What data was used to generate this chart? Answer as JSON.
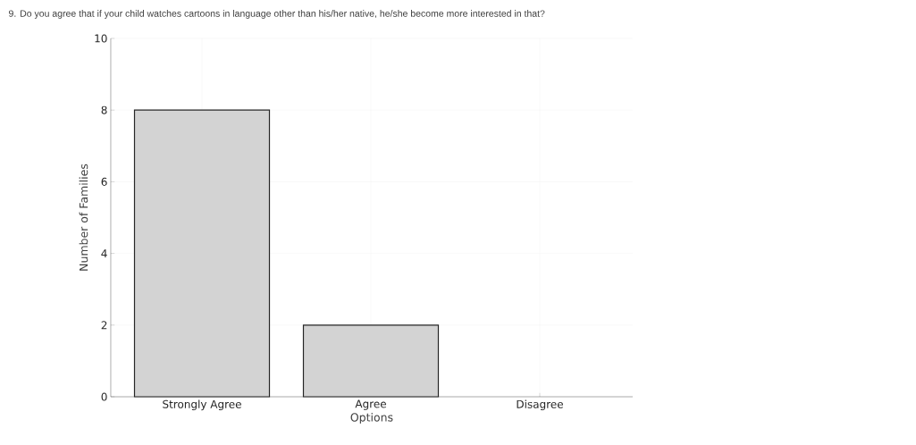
{
  "chart_data": {
    "type": "bar",
    "title": "9. Do you agree that if your child watches cartoons in language other than his/her native, he/she become more interested in that?",
    "xlabel": "Options",
    "ylabel": "Number of Families",
    "categories": [
      "Strongly Agree",
      "Agree",
      "Disagree"
    ],
    "values": [
      8,
      2,
      0
    ],
    "color": "#d3d3d3",
    "ylim": [
      0,
      10
    ],
    "yticks": [
      0,
      2,
      4,
      6,
      8,
      10
    ],
    "grid": true
  }
}
